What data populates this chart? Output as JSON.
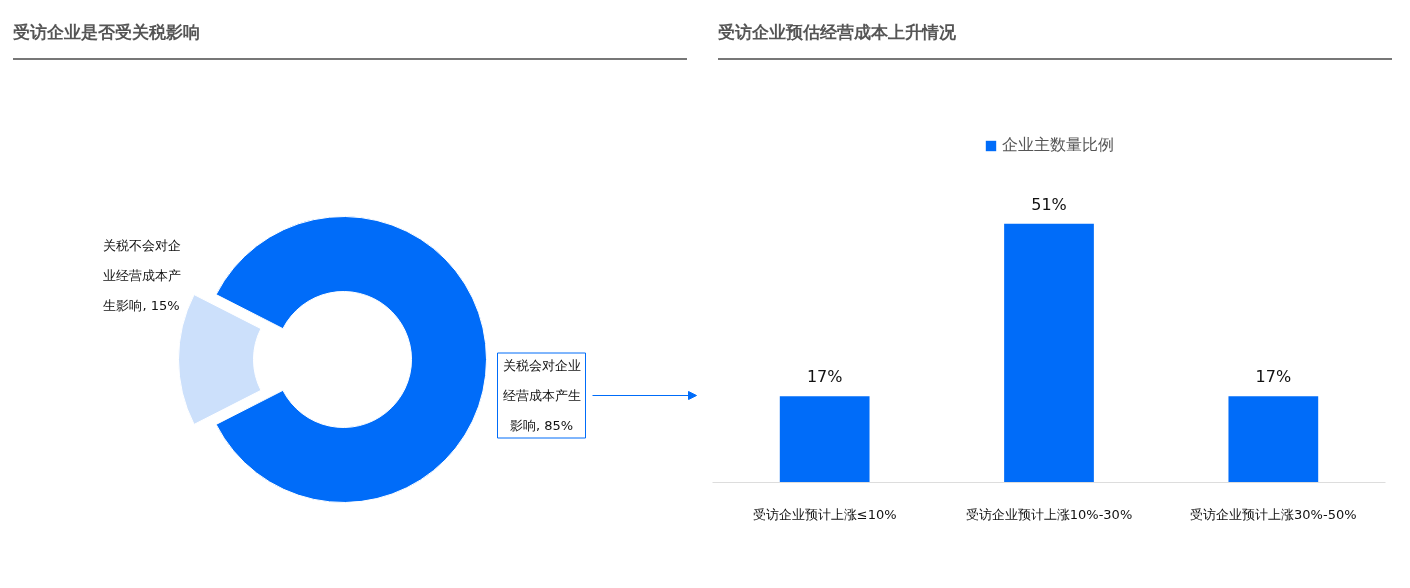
{
  "chart_data": [
    {
      "type": "donut",
      "title": "受访企业是否受关税影响",
      "categories": [
        "关税不会对企业经营成本产生影响",
        "关税会对企业经营成本产生影响"
      ],
      "values": [
        15,
        85
      ],
      "colors": [
        "#cce0fb",
        "#006cf9"
      ],
      "value_labels": [
        "15%",
        "85%"
      ]
    },
    {
      "type": "bar",
      "title": "受访企业预估经营成本上升情况",
      "categories": [
        "受访企业预计上涨≤10%",
        "受访企业预计上涨10%-30%",
        "受访企业预计上涨30%-50%"
      ],
      "series": [
        {
          "name": "企业主数量比例",
          "color": "#006cf9",
          "values": [
            17,
            51,
            17
          ],
          "value_labels": [
            "17%",
            "51%",
            "17%"
          ]
        }
      ],
      "legend": "top",
      "grid": false
    }
  ]
}
